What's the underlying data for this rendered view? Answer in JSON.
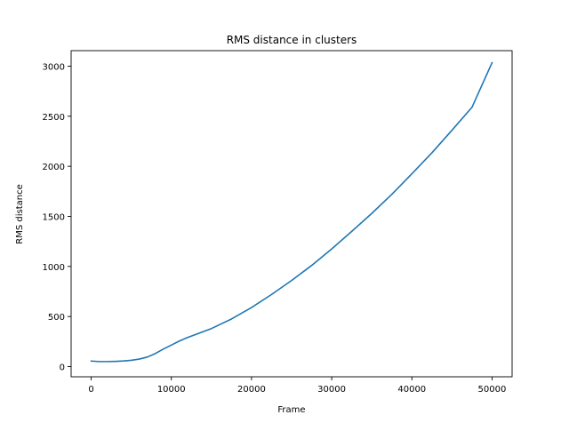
{
  "chart_data": {
    "type": "line",
    "title": "RMS distance in clusters",
    "xlabel": "Frame",
    "ylabel": "RMS distance",
    "xlim": [
      -2500,
      52500
    ],
    "ylim": [
      -102,
      3155
    ],
    "xticks": [
      0,
      10000,
      20000,
      30000,
      40000,
      50000
    ],
    "yticks": [
      0,
      500,
      1000,
      1500,
      2000,
      2500,
      3000
    ],
    "grid": false,
    "series": [
      {
        "color": "#1f77b4",
        "x": [
          0,
          1000,
          2000,
          3000,
          4000,
          5000,
          6000,
          7000,
          8000,
          9000,
          10000,
          11000,
          12000,
          13000,
          14000,
          15000,
          17500,
          20000,
          22500,
          25000,
          27500,
          30000,
          32500,
          35000,
          37500,
          40000,
          42500,
          45000,
          47500,
          50000
        ],
        "y": [
          55,
          50,
          50,
          52,
          56,
          63,
          75,
          95,
          130,
          175,
          215,
          255,
          290,
          320,
          350,
          380,
          475,
          590,
          720,
          860,
          1010,
          1175,
          1350,
          1530,
          1720,
          1925,
          2135,
          2360,
          2590,
          3035
        ]
      }
    ]
  }
}
